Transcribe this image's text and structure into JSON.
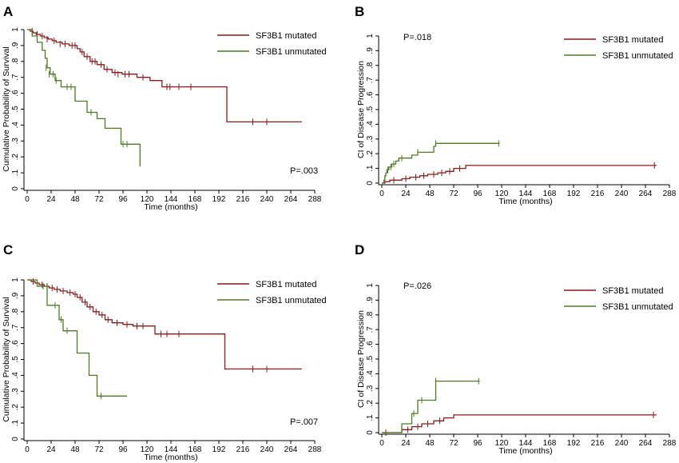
{
  "colors": {
    "mutated": "#8b1a1a",
    "unmutated": "#4e7a26",
    "axis": "#000000"
  },
  "chart_data": [
    {
      "panel": "A",
      "type": "line",
      "step": true,
      "ylabel": "Cumulative Probability of Survival",
      "xlabel": "Time (months)",
      "xticks": [
        "0",
        "24",
        "48",
        "72",
        "96",
        "120",
        "144",
        "168",
        "192",
        "216",
        "240",
        "264",
        "288"
      ],
      "xlim": [
        0,
        288
      ],
      "ylim": [
        0,
        1
      ],
      "yticks": [
        0,
        0.1,
        0.2,
        0.3,
        0.4,
        0.5,
        0.6,
        0.7,
        0.8,
        0.9,
        1
      ],
      "yticklabels": [
        "0",
        ".1",
        ".2",
        ".3",
        ".4",
        ".5",
        ".6",
        ".7",
        ".8",
        ".9",
        "1"
      ],
      "annotation": "P=.003",
      "legend": [
        "SF3B1 mutated",
        "SF3B1 unmutated"
      ],
      "legend_position": "top-right",
      "series": [
        {
          "name": "SF3B1 mutated",
          "points": [
            [
              0,
              1
            ],
            [
              3,
              0.99
            ],
            [
              6,
              0.98
            ],
            [
              9,
              0.97
            ],
            [
              13,
              0.96
            ],
            [
              17,
              0.95
            ],
            [
              21,
              0.94
            ],
            [
              25,
              0.93
            ],
            [
              29,
              0.92
            ],
            [
              35,
              0.91
            ],
            [
              42,
              0.9
            ],
            [
              50,
              0.88
            ],
            [
              53,
              0.86
            ],
            [
              57,
              0.83
            ],
            [
              63,
              0.8
            ],
            [
              70,
              0.78
            ],
            [
              77,
              0.75
            ],
            [
              85,
              0.73
            ],
            [
              95,
              0.72
            ],
            [
              110,
              0.7
            ],
            [
              123,
              0.68
            ],
            [
              135,
              0.64
            ],
            [
              200,
              0.42
            ],
            [
              275,
              0.42
            ]
          ],
          "censored": [
            [
              5,
              0.99
            ],
            [
              10,
              0.97
            ],
            [
              15,
              0.96
            ],
            [
              20,
              0.94
            ],
            [
              27,
              0.93
            ],
            [
              33,
              0.91
            ],
            [
              38,
              0.91
            ],
            [
              45,
              0.9
            ],
            [
              48,
              0.9
            ],
            [
              55,
              0.86
            ],
            [
              60,
              0.83
            ],
            [
              65,
              0.8
            ],
            [
              68,
              0.8
            ],
            [
              74,
              0.78
            ],
            [
              80,
              0.75
            ],
            [
              88,
              0.73
            ],
            [
              91,
              0.72
            ],
            [
              98,
              0.72
            ],
            [
              102,
              0.72
            ],
            [
              116,
              0.7
            ],
            [
              140,
              0.64
            ],
            [
              143,
              0.64
            ],
            [
              152,
              0.64
            ],
            [
              164,
              0.64
            ],
            [
              226,
              0.42
            ],
            [
              240,
              0.42
            ]
          ]
        },
        {
          "name": "SF3B1 unmutated",
          "points": [
            [
              0,
              1
            ],
            [
              5,
              0.96
            ],
            [
              10,
              0.92
            ],
            [
              15,
              0.87
            ],
            [
              18,
              0.82
            ],
            [
              20,
              0.76
            ],
            [
              23,
              0.72
            ],
            [
              28,
              0.68
            ],
            [
              34,
              0.64
            ],
            [
              48,
              0.55
            ],
            [
              60,
              0.48
            ],
            [
              70,
              0.44
            ],
            [
              78,
              0.38
            ],
            [
              94,
              0.28
            ],
            [
              112,
              0.28
            ],
            [
              113,
              0.14
            ]
          ],
          "censored": [
            [
              19,
              0.76
            ],
            [
              22,
              0.72
            ],
            [
              26,
              0.72
            ],
            [
              29,
              0.68
            ],
            [
              40,
              0.64
            ],
            [
              44,
              0.64
            ],
            [
              64,
              0.48
            ],
            [
              96,
              0.28
            ],
            [
              100,
              0.28
            ]
          ]
        }
      ]
    },
    {
      "panel": "B",
      "type": "line",
      "step": true,
      "ylabel": "CI of Disease Progression",
      "xlabel": "Time (months)",
      "xticks": [
        "0",
        "24",
        "48",
        "72",
        "96",
        "120",
        "144",
        "168",
        "192",
        "216",
        "240",
        "264",
        "288"
      ],
      "xlim": [
        0,
        288
      ],
      "ylim": [
        0,
        1
      ],
      "yticks": [
        0,
        0.1,
        0.2,
        0.3,
        0.4,
        0.5,
        0.6,
        0.7,
        0.8,
        0.9,
        1
      ],
      "yticklabels": [
        "0",
        ".1",
        ".2",
        ".3",
        ".4",
        ".5",
        ".6",
        ".7",
        ".8",
        ".9",
        "1"
      ],
      "annotation": "P=.018",
      "legend": [
        "SF3B1 mutated",
        "SF3B1 unmutated"
      ],
      "legend_position": "top-right",
      "series": [
        {
          "name": "SF3B1 mutated",
          "points": [
            [
              0,
              0
            ],
            [
              3,
              0.01
            ],
            [
              8,
              0.02
            ],
            [
              20,
              0.03
            ],
            [
              28,
              0.04
            ],
            [
              38,
              0.05
            ],
            [
              46,
              0.06
            ],
            [
              56,
              0.07
            ],
            [
              64,
              0.08
            ],
            [
              72,
              0.1
            ],
            [
              84,
              0.12
            ],
            [
              275,
              0.12
            ]
          ],
          "censored": [
            [
              12,
              0.02
            ],
            [
              24,
              0.03
            ],
            [
              34,
              0.04
            ],
            [
              42,
              0.05
            ],
            [
              52,
              0.06
            ],
            [
              60,
              0.07
            ],
            [
              68,
              0.08
            ],
            [
              78,
              0.1
            ],
            [
              273,
              0.12
            ]
          ]
        },
        {
          "name": "SF3B1 unmutated",
          "points": [
            [
              0,
              0
            ],
            [
              2,
              0.02
            ],
            [
              3,
              0.05
            ],
            [
              4,
              0.07
            ],
            [
              5,
              0.09
            ],
            [
              7,
              0.11
            ],
            [
              10,
              0.13
            ],
            [
              14,
              0.15
            ],
            [
              17,
              0.17
            ],
            [
              30,
              0.19
            ],
            [
              36,
              0.21
            ],
            [
              52,
              0.25
            ],
            [
              54,
              0.27
            ],
            [
              118,
              0.27
            ]
          ],
          "censored": [
            [
              6,
              0.09
            ],
            [
              9,
              0.11
            ],
            [
              12,
              0.13
            ],
            [
              20,
              0.17
            ],
            [
              36,
              0.21
            ],
            [
              54,
              0.27
            ],
            [
              117,
              0.27
            ]
          ]
        }
      ]
    },
    {
      "panel": "C",
      "type": "line",
      "step": true,
      "ylabel": "Cumulative Probability of Survival",
      "xlabel": "Time (months)",
      "xticks": [
        "0",
        "24",
        "48",
        "72",
        "96",
        "120",
        "144",
        "168",
        "192",
        "216",
        "240",
        "264",
        "288"
      ],
      "xlim": [
        0,
        288
      ],
      "ylim": [
        0,
        1
      ],
      "yticks": [
        0,
        0.1,
        0.2,
        0.3,
        0.4,
        0.5,
        0.6,
        0.7,
        0.8,
        0.9,
        1
      ],
      "yticklabels": [
        "0",
        ".1",
        ".2",
        ".3",
        ".4",
        ".5",
        ".6",
        ".7",
        ".8",
        ".9",
        "1"
      ],
      "annotation": "P=.007",
      "legend": [
        "SF3B1 mutated",
        "SF3B1 unmutated"
      ],
      "legend_position": "top-right",
      "series": [
        {
          "name": "SF3B1 mutated",
          "points": [
            [
              0,
              1
            ],
            [
              4,
              0.99
            ],
            [
              8,
              0.98
            ],
            [
              12,
              0.97
            ],
            [
              17,
              0.96
            ],
            [
              22,
              0.95
            ],
            [
              27,
              0.94
            ],
            [
              33,
              0.93
            ],
            [
              40,
              0.92
            ],
            [
              46,
              0.91
            ],
            [
              50,
              0.89
            ],
            [
              55,
              0.86
            ],
            [
              60,
              0.83
            ],
            [
              66,
              0.8
            ],
            [
              72,
              0.78
            ],
            [
              78,
              0.75
            ],
            [
              85,
              0.73
            ],
            [
              96,
              0.72
            ],
            [
              106,
              0.71
            ],
            [
              128,
              0.66
            ],
            [
              198,
              0.44
            ],
            [
              275,
              0.44
            ]
          ],
          "censored": [
            [
              6,
              0.99
            ],
            [
              10,
              0.98
            ],
            [
              15,
              0.97
            ],
            [
              20,
              0.96
            ],
            [
              25,
              0.95
            ],
            [
              30,
              0.94
            ],
            [
              36,
              0.93
            ],
            [
              43,
              0.92
            ],
            [
              48,
              0.91
            ],
            [
              53,
              0.89
            ],
            [
              58,
              0.86
            ],
            [
              63,
              0.83
            ],
            [
              69,
              0.8
            ],
            [
              75,
              0.78
            ],
            [
              81,
              0.75
            ],
            [
              90,
              0.73
            ],
            [
              100,
              0.72
            ],
            [
              110,
              0.71
            ],
            [
              116,
              0.71
            ],
            [
              134,
              0.66
            ],
            [
              140,
              0.66
            ],
            [
              152,
              0.66
            ],
            [
              226,
              0.44
            ],
            [
              240,
              0.44
            ]
          ]
        },
        {
          "name": "SF3B1 unmutated",
          "points": [
            [
              0,
              1
            ],
            [
              10,
              0.96
            ],
            [
              20,
              0.84
            ],
            [
              32,
              0.75
            ],
            [
              36,
              0.68
            ],
            [
              50,
              0.54
            ],
            [
              62,
              0.4
            ],
            [
              70,
              0.27
            ],
            [
              100,
              0.27
            ]
          ],
          "censored": [
            [
              16,
              0.96
            ],
            [
              28,
              0.84
            ],
            [
              34,
              0.75
            ],
            [
              40,
              0.68
            ],
            [
              74,
              0.27
            ]
          ]
        }
      ]
    },
    {
      "panel": "D",
      "type": "line",
      "step": true,
      "ylabel": "CI of Disease Progression",
      "xlabel": "Time (months)",
      "xticks": [
        "0",
        "24",
        "48",
        "72",
        "96",
        "120",
        "144",
        "168",
        "192",
        "216",
        "240",
        "264",
        "288"
      ],
      "xlim": [
        0,
        288
      ],
      "ylim": [
        0,
        1
      ],
      "yticks": [
        0,
        0.1,
        0.2,
        0.3,
        0.4,
        0.5,
        0.6,
        0.7,
        0.8,
        0.9,
        1
      ],
      "yticklabels": [
        "0",
        ".1",
        ".2",
        ".3",
        ".4",
        ".5",
        ".6",
        ".7",
        ".8",
        ".9",
        "1"
      ],
      "annotation": "P=.026",
      "legend": [
        "SF3B1 mutated",
        "SF3B1 unmutated"
      ],
      "legend_position": "top-right",
      "series": [
        {
          "name": "SF3B1 mutated",
          "points": [
            [
              0,
              0
            ],
            [
              20,
              0.02
            ],
            [
              30,
              0.04
            ],
            [
              40,
              0.06
            ],
            [
              52,
              0.08
            ],
            [
              62,
              0.1
            ],
            [
              72,
              0.12
            ],
            [
              275,
              0.12
            ]
          ],
          "censored": [
            [
              4,
              0
            ],
            [
              26,
              0.02
            ],
            [
              36,
              0.04
            ],
            [
              46,
              0.06
            ],
            [
              58,
              0.08
            ],
            [
              272,
              0.12
            ]
          ]
        },
        {
          "name": "SF3B1 unmutated",
          "points": [
            [
              0,
              0
            ],
            [
              20,
              0.06
            ],
            [
              30,
              0.13
            ],
            [
              36,
              0.22
            ],
            [
              54,
              0.35
            ],
            [
              98,
              0.35
            ]
          ],
          "censored": [
            [
              32,
              0.13
            ],
            [
              40,
              0.22
            ],
            [
              54,
              0.35
            ],
            [
              97,
              0.35
            ]
          ]
        }
      ]
    }
  ]
}
